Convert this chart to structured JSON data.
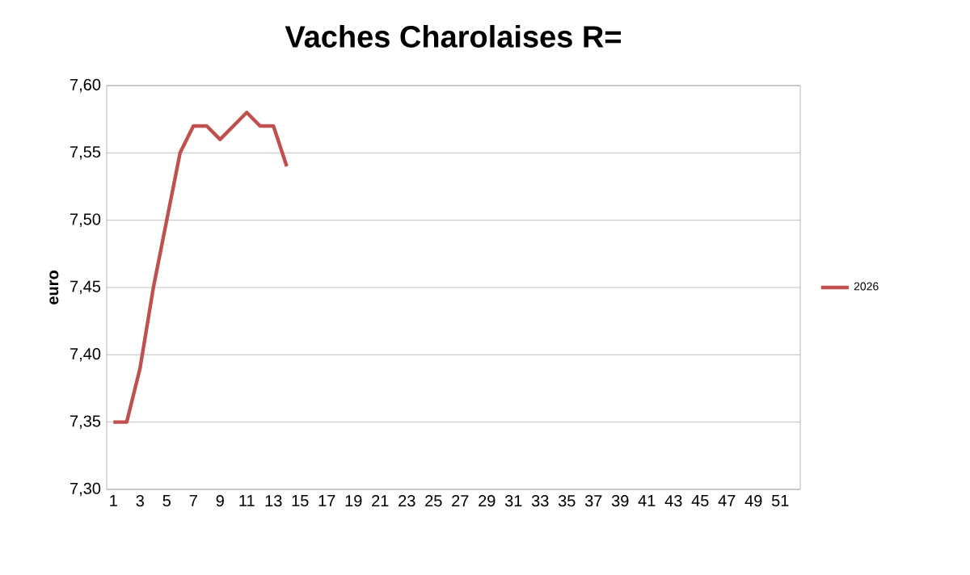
{
  "chart_data": {
    "type": "line",
    "title": "Vaches Charolaises R=",
    "ylabel": "euro",
    "categories": [
      "1",
      null,
      "3",
      null,
      "5",
      null,
      "7",
      null,
      "9",
      null,
      "11",
      null,
      "13",
      null,
      "15",
      null,
      "17",
      null,
      "19",
      null,
      "21",
      null,
      "23",
      null,
      "25",
      null,
      "27",
      null,
      "29",
      null,
      "31",
      null,
      "33",
      null,
      "35",
      null,
      "37",
      null,
      "39",
      null,
      "41",
      null,
      "43",
      null,
      "45",
      null,
      "47",
      null,
      "49",
      null,
      "51",
      null
    ],
    "series": [
      {
        "name": "2026",
        "color": "#c0504d",
        "values": [
          7.35,
          7.35,
          7.39,
          7.45,
          7.5,
          7.55,
          7.57,
          7.57,
          7.56,
          7.57,
          7.58,
          7.57,
          7.57,
          7.54,
          null,
          null,
          null,
          null,
          null,
          null,
          null,
          null,
          null,
          null,
          null,
          null,
          null,
          null,
          null,
          null,
          null,
          null,
          null,
          null,
          null,
          null,
          null,
          null,
          null,
          null,
          null,
          null,
          null,
          null,
          null,
          null,
          null,
          null,
          null,
          null,
          null,
          null
        ]
      }
    ],
    "ylim": [
      7.3,
      7.6
    ],
    "yticks": [
      {
        "value": 7.3,
        "label": "7,30"
      },
      {
        "value": 7.35,
        "label": "7,35"
      },
      {
        "value": 7.4,
        "label": "7,40"
      },
      {
        "value": 7.45,
        "label": "7,45"
      },
      {
        "value": 7.5,
        "label": "7,50"
      },
      {
        "value": 7.55,
        "label": "7,55"
      },
      {
        "value": 7.6,
        "label": "7,60"
      }
    ],
    "grid": "y",
    "legend": "right",
    "marker": "none",
    "line_style": "solid"
  }
}
